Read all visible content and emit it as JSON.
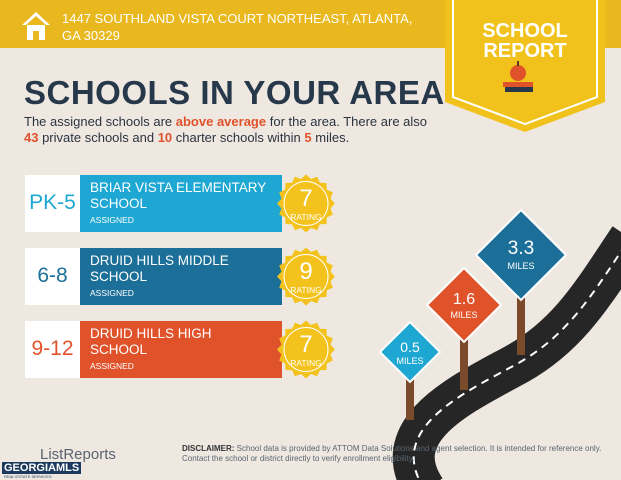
{
  "header": {
    "address": "1447 SOUTHLAND VISTA COURT NORTHEAST, ATLANTA, GA 30329",
    "badge_line1": "SCHOOL",
    "badge_line2": "REPORT"
  },
  "title": "SCHOOLS IN YOUR AREA",
  "intro": [
    {
      "text": "The assigned schools are ",
      "emphasis": false
    },
    {
      "text": "above average",
      "emphasis": true
    },
    {
      "text": " for the area. There are also ",
      "emphasis": false
    },
    {
      "text": "43",
      "emphasis": true
    },
    {
      "text": " private schools and ",
      "emphasis": false
    },
    {
      "text": "10",
      "emphasis": true
    },
    {
      "text": " charter schools within ",
      "emphasis": false
    },
    {
      "text": "5",
      "emphasis": true
    },
    {
      "text": " miles.",
      "emphasis": false
    }
  ],
  "schools": [
    {
      "grades": "PK-5",
      "name": "BRIAR VISTA ELEMENTARY SCHOOL",
      "status": "ASSIGNED",
      "rating": 7,
      "rating_label": "RATING",
      "color": "#1ea7d2"
    },
    {
      "grades": "6-8",
      "name": "DRUID HILLS MIDDLE SCHOOL",
      "status": "ASSIGNED",
      "rating": 9,
      "rating_label": "RATING",
      "color": "#1c6f98"
    },
    {
      "grades": "9-12",
      "name": "DRUID HILLS HIGH SCHOOL",
      "status": "ASSIGNED",
      "rating": 7,
      "rating_label": "RATING",
      "color": "#e0522a"
    }
  ],
  "distances": [
    {
      "value": "0.5",
      "unit": "MILES",
      "color": "#1ea7d2"
    },
    {
      "value": "1.6",
      "unit": "MILES",
      "color": "#e0522a"
    },
    {
      "value": "3.3",
      "unit": "MILES",
      "color": "#1c6f98"
    }
  ],
  "footer": {
    "brand": "ListReports",
    "mls": "GEORGIAMLS",
    "mls_sub": "REAL ESTATE SERVICES",
    "disclaimer_label": "DISCLAIMER:",
    "disclaimer": " School data is provided by ATTOM Data Solutions and agent selection. It is intended for reference only. Contact the school or district directly to verify enrollment eligibility."
  }
}
